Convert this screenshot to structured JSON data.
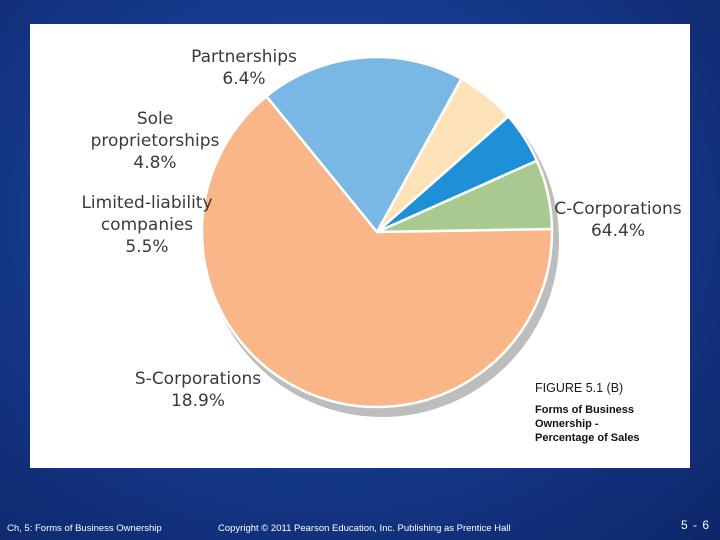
{
  "chart_data": {
    "type": "pie",
    "title": "",
    "slices": [
      {
        "name": "C-Corporations",
        "value": 64.4,
        "label": [
          "C-Corporations",
          "64.4%"
        ],
        "color": "#f8b689"
      },
      {
        "name": "S-Corporations",
        "value": 18.9,
        "label": [
          "S-Corporations",
          "18.9%"
        ],
        "color": "#79b7e4"
      },
      {
        "name": "Limited-liability companies",
        "value": 5.5,
        "label": [
          "Limited-liability",
          "companies",
          "5.5%"
        ],
        "color": "#fde3b7"
      },
      {
        "name": "Sole proprietorships",
        "value": 4.8,
        "label": [
          "Sole",
          "proprietorships",
          "4.8%"
        ],
        "color": "#1d90d8"
      },
      {
        "name": "Partnerships",
        "value": 6.4,
        "label": [
          "Partnerships",
          "6.4%"
        ],
        "color": "#a8c98f"
      }
    ]
  },
  "caption": {
    "figure_number": "FIGURE 5.1 (B)",
    "title": "Forms of Business\nOwnership -\nPercentage of Sales"
  },
  "footer": {
    "left": "Ch, 5: Forms of Business Ownership",
    "center": "Copyright © 2011 Pearson Education, Inc. Publishing as Prentice Hall",
    "page": "5 - 6"
  },
  "colors": {
    "background": "#173b8f",
    "panel": "#ffffff"
  }
}
